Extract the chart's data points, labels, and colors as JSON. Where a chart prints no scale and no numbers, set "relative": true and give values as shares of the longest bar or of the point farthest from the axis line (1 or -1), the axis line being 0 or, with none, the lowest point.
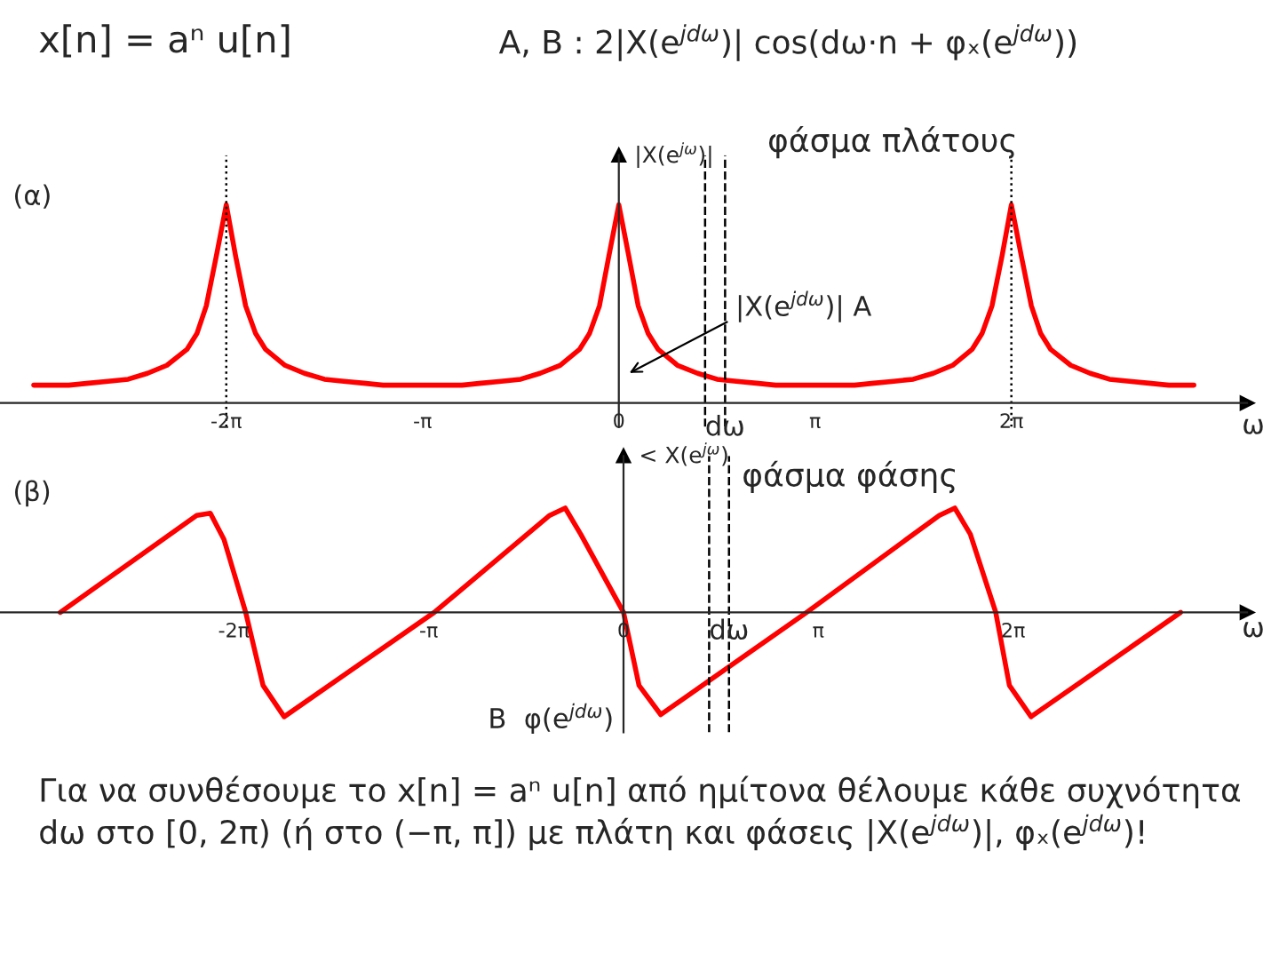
{
  "chart_data": [
    {
      "type": "line",
      "title": "x[n] = aⁿ u[n]",
      "subtitle": "A, B : 2|X(e$^{jdω}$)| cos(dω·n + φₓ(e$^{jdω}$))",
      "ylabel": "|X(e$^{jω}$)|",
      "xlabel": "ω",
      "relative": true,
      "xlim": [
        -9.9,
        10.05
      ],
      "xticks": [
        {
          "value": -6.28,
          "label": "-2π"
        },
        {
          "value": -3.14,
          "label": "-π"
        },
        {
          "value": 0,
          "label": "0"
        },
        {
          "value": 3.14,
          "label": "π"
        },
        {
          "value": 6.28,
          "label": "2π"
        }
      ],
      "annotations": [
        "(α)",
        "φάσμα πλάτους",
        "|X(e$^{jdω}$)| A"
      ],
      "ref_lines": [
        {
          "axis": "x",
          "value": -6.28,
          "line_style": "dotted",
          "color": "#000000"
        },
        {
          "axis": "x",
          "value": 6.28,
          "line_style": "dotted",
          "color": "#000000"
        },
        {
          "axis": "x",
          "value": 1.38,
          "label": "dω",
          "line_style": "dashed",
          "color": "#000000"
        },
        {
          "axis": "x",
          "value": 1.7,
          "line_style": "dashed",
          "color": "#000000"
        }
      ],
      "series": [
        {
          "color": "#ff0000",
          "x": [
            -9.36,
            -9.11,
            -8.8,
            -8.48,
            -8.17,
            -7.85,
            -7.54,
            -7.23,
            -6.91,
            -6.75,
            -6.6,
            -6.44,
            -6.28,
            -6.13,
            -5.97,
            -5.81,
            -5.65,
            -5.34,
            -5.03,
            -4.71,
            -4.4,
            -4.08,
            -3.77,
            -3.46,
            -3.14,
            -2.83,
            -2.51,
            -2.2,
            -1.88,
            -1.57,
            -1.26,
            -0.94,
            -0.63,
            -0.47,
            -0.31,
            -0.16,
            0,
            0.16,
            0.31,
            0.47,
            0.63,
            0.94,
            1.26,
            1.57,
            1.88,
            2.2,
            2.51,
            2.83,
            3.14,
            3.46,
            3.77,
            4.08,
            4.4,
            4.71,
            5.03,
            5.34,
            5.65,
            5.81,
            5.97,
            6.13,
            6.28,
            6.44,
            6.6,
            6.75,
            6.91,
            7.23,
            7.54,
            7.85,
            8.17,
            8.48,
            8.8,
            9.2
          ],
          "values": [
            0.09,
            0.09,
            0.09,
            0.1,
            0.11,
            0.12,
            0.15,
            0.19,
            0.27,
            0.35,
            0.49,
            0.74,
            1.0,
            0.74,
            0.49,
            0.35,
            0.27,
            0.19,
            0.15,
            0.12,
            0.11,
            0.1,
            0.09,
            0.09,
            0.09,
            0.09,
            0.09,
            0.1,
            0.11,
            0.12,
            0.15,
            0.19,
            0.27,
            0.35,
            0.49,
            0.74,
            1.0,
            0.74,
            0.49,
            0.35,
            0.27,
            0.19,
            0.15,
            0.12,
            0.11,
            0.1,
            0.09,
            0.09,
            0.09,
            0.09,
            0.09,
            0.1,
            0.11,
            0.12,
            0.15,
            0.19,
            0.27,
            0.35,
            0.49,
            0.74,
            1.0,
            0.74,
            0.49,
            0.35,
            0.27,
            0.19,
            0.15,
            0.12,
            0.11,
            0.1,
            0.09,
            0.09
          ]
        }
      ]
    },
    {
      "type": "line",
      "ylabel": "< X(e$^{jω}$)",
      "xlabel": "ω",
      "relative": true,
      "xlim": [
        -10.05,
        10.05
      ],
      "xticks": [
        {
          "value": -6.28,
          "label": "-2π"
        },
        {
          "value": -3.14,
          "label": "-π"
        },
        {
          "value": 0,
          "label": "0"
        },
        {
          "value": 3.14,
          "label": "π"
        },
        {
          "value": 6.28,
          "label": "2π"
        }
      ],
      "annotations": [
        "(β)",
        "φάσμα φάσης",
        "B  φ(e$^{jdω}$)",
        "Για να συνθέσουμε το x[n] = aⁿ u[n] από ημίτονα θέλουμε κάθε συχνότητα dω στο [0, 2π) (ή στο (−π, π]) με πλάτη και φάσεις |X(e$^{jdω}$)|, φₓ(e$^{jdω}$)!"
      ],
      "ref_lines": [
        {
          "axis": "x",
          "value": 1.38,
          "label": "dω",
          "line_style": "dashed",
          "color": "#000000"
        },
        {
          "axis": "x",
          "value": 1.7,
          "line_style": "dashed",
          "color": "#000000"
        }
      ],
      "series": [
        {
          "color": "#ff0000",
          "x": [
            -9.08,
            -6.88,
            -6.66,
            -6.44,
            -6.09,
            -5.81,
            -5.47,
            -3.05,
            -1.19,
            -0.94,
            -0.69,
            0,
            0.25,
            0.6,
            2.95,
            5.09,
            5.34,
            5.59,
            6.0,
            6.22,
            6.57,
            8.98
          ],
          "values": [
            0,
            0.93,
            0.95,
            0.7,
            0,
            -0.7,
            -1.0,
            0,
            0.93,
            1.0,
            0.75,
            0,
            -0.7,
            -0.98,
            0,
            0.93,
            1.0,
            0.75,
            0,
            -0.7,
            -1.0,
            0
          ]
        }
      ]
    }
  ]
}
